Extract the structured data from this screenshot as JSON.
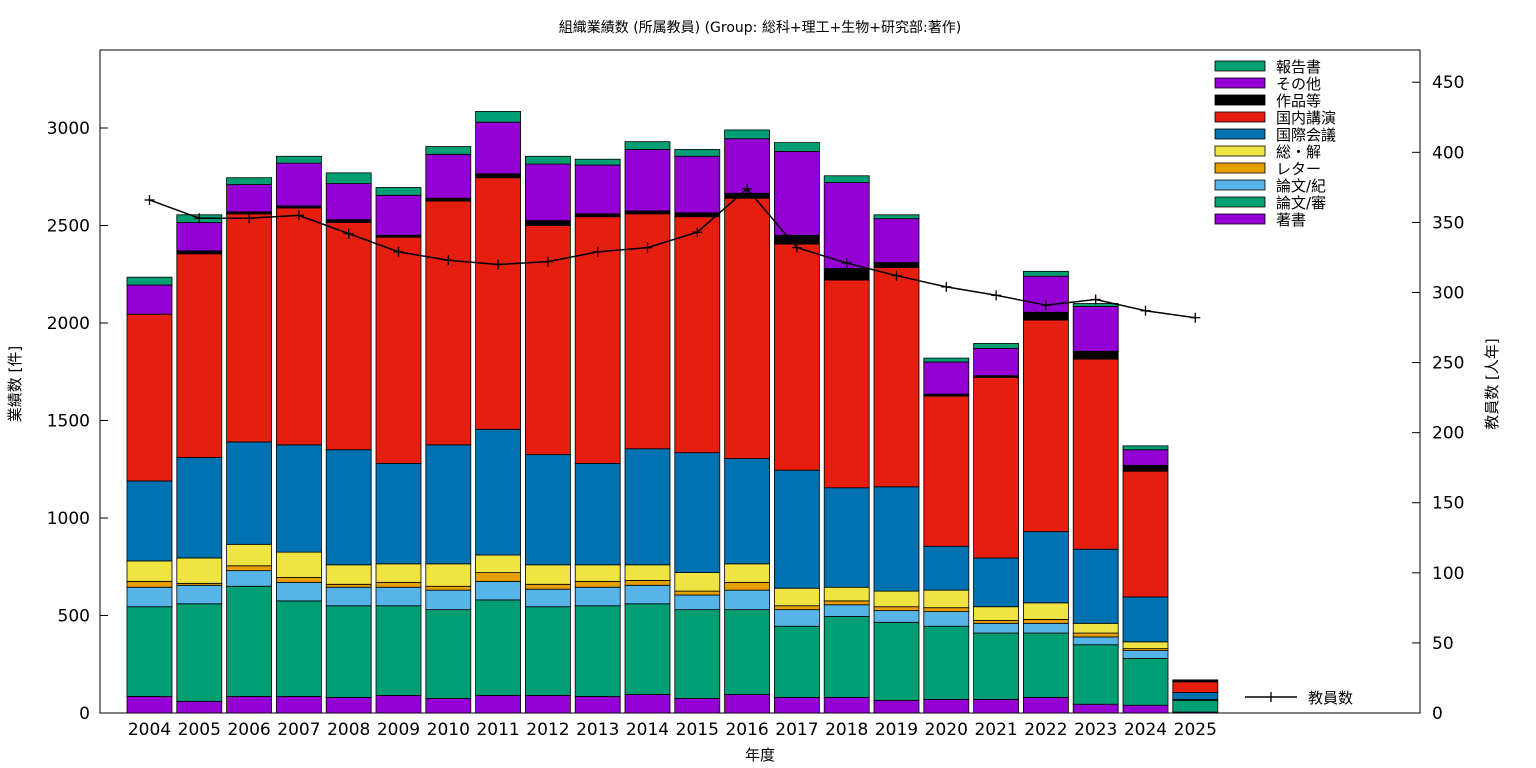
{
  "chart_data": {
    "type": "bar",
    "stacked": true,
    "title": "組織業績数 (所属教員) (Group: 総科+理工+生物+研究部:著作)",
    "xlabel": "年度",
    "ylabel": "業績数 [件]",
    "y2label": "教員数 [人年]",
    "ylim": [
      0,
      3400
    ],
    "y2lim": [
      0,
      473
    ],
    "yticks": [
      0,
      500,
      1000,
      1500,
      2000,
      2500,
      3000
    ],
    "y2ticks": [
      0,
      50,
      100,
      150,
      200,
      250,
      300,
      350,
      400,
      450
    ],
    "legend_position": "top-right",
    "categories": [
      "2004",
      "2005",
      "2006",
      "2007",
      "2008",
      "2009",
      "2010",
      "2011",
      "2012",
      "2013",
      "2014",
      "2015",
      "2016",
      "2017",
      "2018",
      "2019",
      "2020",
      "2021",
      "2022",
      "2023",
      "2024",
      "2025"
    ],
    "series": [
      {
        "name": "著書",
        "color": "#9400d3",
        "values": [
          85,
          60,
          85,
          85,
          80,
          90,
          75,
          90,
          90,
          85,
          95,
          75,
          95,
          80,
          80,
          65,
          70,
          70,
          80,
          45,
          40,
          5
        ]
      },
      {
        "name": "論文/審",
        "color": "#009e73",
        "values": [
          460,
          500,
          565,
          490,
          470,
          460,
          455,
          490,
          455,
          465,
          465,
          455,
          435,
          365,
          415,
          400,
          375,
          340,
          330,
          305,
          240,
          60
        ]
      },
      {
        "name": "論文/紀",
        "color": "#56b4e9",
        "values": [
          100,
          95,
          80,
          95,
          95,
          95,
          100,
          95,
          90,
          95,
          95,
          75,
          100,
          85,
          60,
          60,
          75,
          50,
          50,
          40,
          40,
          5
        ]
      },
      {
        "name": "レター",
        "color": "#e69f00",
        "values": [
          30,
          10,
          25,
          25,
          15,
          25,
          20,
          45,
          25,
          30,
          25,
          20,
          40,
          20,
          20,
          20,
          20,
          15,
          20,
          20,
          10,
          0
        ]
      },
      {
        "name": "総・解",
        "color": "#f0e442",
        "values": [
          105,
          130,
          110,
          130,
          100,
          95,
          115,
          90,
          100,
          85,
          80,
          95,
          95,
          90,
          70,
          80,
          90,
          70,
          85,
          50,
          35,
          0
        ]
      },
      {
        "name": "国際会議",
        "color": "#0072b2",
        "values": [
          410,
          515,
          525,
          550,
          590,
          515,
          610,
          645,
          565,
          520,
          595,
          615,
          540,
          605,
          510,
          535,
          225,
          250,
          365,
          380,
          230,
          35
        ]
      },
      {
        "name": "国内講演",
        "color": "#e51e10",
        "values": [
          855,
          1045,
          1170,
          1215,
          1165,
          1160,
          1250,
          1290,
          1175,
          1265,
          1205,
          1210,
          1335,
          1160,
          1065,
          1125,
          770,
          925,
          1085,
          975,
          645,
          55
        ]
      },
      {
        "name": "作品等",
        "color": "#000000",
        "values": [
          0,
          15,
          10,
          10,
          15,
          10,
          15,
          20,
          25,
          15,
          15,
          20,
          25,
          45,
          60,
          25,
          10,
          10,
          40,
          40,
          30,
          10
        ]
      },
      {
        "name": "その他",
        "color": "#9400d3",
        "values": [
          150,
          145,
          140,
          220,
          185,
          205,
          225,
          265,
          290,
          250,
          315,
          290,
          280,
          430,
          440,
          225,
          165,
          140,
          185,
          230,
          80,
          0
        ]
      },
      {
        "name": "報告書",
        "color": "#009e73",
        "values": [
          40,
          40,
          35,
          35,
          55,
          40,
          40,
          55,
          40,
          30,
          40,
          35,
          45,
          45,
          35,
          20,
          20,
          25,
          25,
          15,
          20,
          0
        ]
      }
    ],
    "line_series": {
      "name": "教員数",
      "axis": "y2",
      "color": "#000000",
      "values": [
        366,
        353,
        353,
        355,
        342,
        329,
        323,
        320,
        322,
        329,
        332,
        343,
        374,
        332,
        321,
        312,
        304,
        298,
        291,
        295,
        287,
        282
      ]
    }
  }
}
